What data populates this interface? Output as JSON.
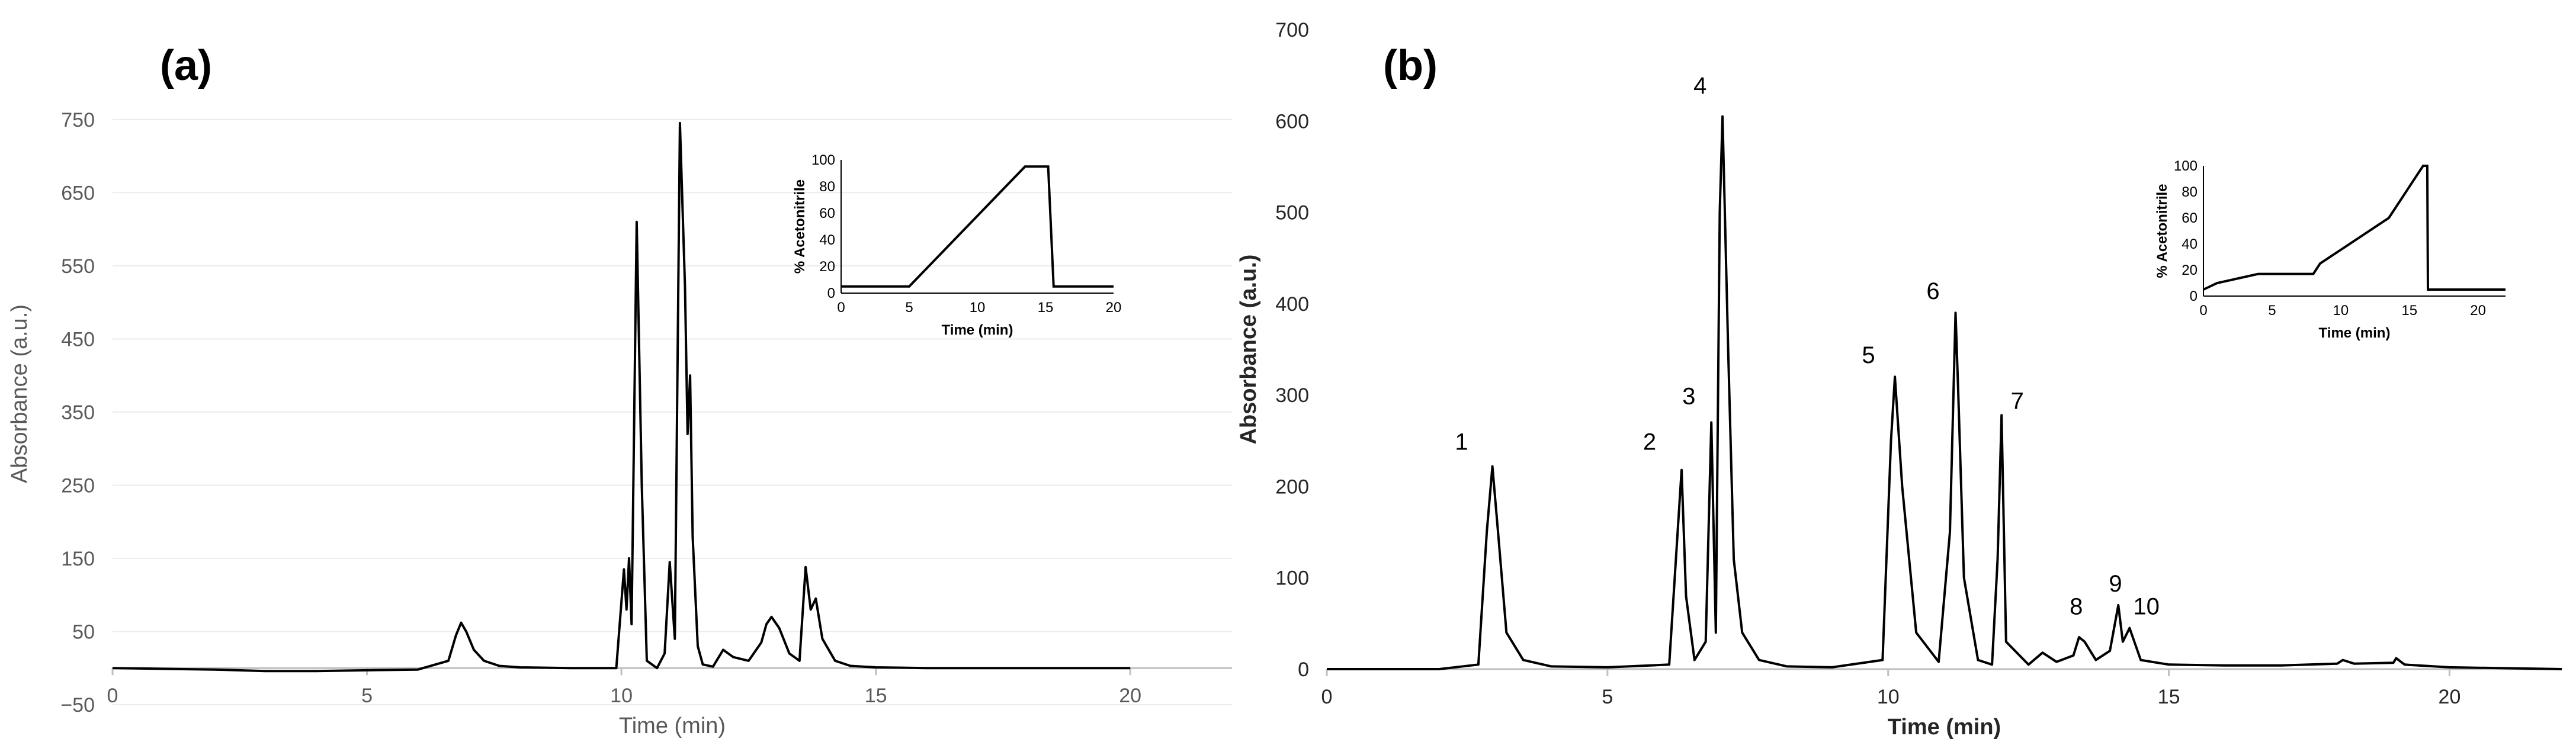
{
  "chart_data": [
    {
      "type": "line",
      "panel_label": "(a)",
      "xlabel": "Time (min)",
      "ylabel": "Absorbance (a.u.)",
      "xlim": [
        0,
        22
      ],
      "ylim": [
        -50,
        800
      ],
      "xticks": [
        0,
        5,
        10,
        15,
        20
      ],
      "yticks": [
        -50,
        50,
        150,
        250,
        350,
        450,
        550,
        650,
        750
      ],
      "series": [
        {
          "values_note": "",
          "x": [
            0,
            1,
            2,
            3,
            4,
            5,
            6,
            6.6,
            6.75,
            6.85,
            6.95,
            7.1,
            7.3,
            7.6,
            8,
            9,
            9.9,
            10.05,
            10.1,
            10.15,
            10.2,
            10.3,
            10.4,
            10.5,
            10.7,
            10.85,
            10.95,
            11.05,
            11.15,
            11.25,
            11.3,
            11.35,
            11.4,
            11.5,
            11.6,
            11.8,
            12.0,
            12.2,
            12.5,
            12.75,
            12.85,
            12.95,
            13.1,
            13.3,
            13.5,
            13.62,
            13.72,
            13.82,
            13.95,
            14.2,
            14.5,
            15,
            16,
            17,
            18,
            19,
            20
          ],
          "y": [
            0,
            -1,
            -2,
            -4,
            -4,
            -3,
            -2,
            10,
            45,
            62,
            50,
            25,
            10,
            3,
            1,
            0,
            0,
            135,
            80,
            150,
            60,
            610,
            250,
            10,
            0,
            20,
            145,
            40,
            745,
            520,
            320,
            400,
            180,
            30,
            5,
            2,
            25,
            15,
            10,
            35,
            60,
            70,
            55,
            20,
            10,
            138,
            80,
            95,
            40,
            10,
            3,
            1,
            0,
            0,
            0,
            0,
            0
          ]
        }
      ],
      "inset": {
        "xlabel": "Time (min)",
        "ylabel": "% Acetonitrile",
        "xlim": [
          0,
          20
        ],
        "ylim": [
          0,
          100
        ],
        "xticks": [
          0,
          5,
          10,
          15,
          20
        ],
        "yticks": [
          0,
          20,
          40,
          60,
          80,
          100
        ],
        "x": [
          0,
          5,
          13.5,
          15.2,
          15.6,
          20
        ],
        "y": [
          5,
          5,
          95,
          95,
          5,
          5
        ]
      }
    },
    {
      "type": "line",
      "panel_label": "(b)",
      "xlabel": "Time (min)",
      "ylabel": "Absorbance (a.u.)",
      "xlim": [
        0,
        22
      ],
      "ylim": [
        0,
        700
      ],
      "xticks": [
        0,
        5,
        10,
        15,
        20
      ],
      "yticks": [
        0,
        100,
        200,
        300,
        400,
        500,
        600,
        700
      ],
      "peak_labels": [
        {
          "text": "1",
          "x": 2.4,
          "y": 240
        },
        {
          "text": "2",
          "x": 5.75,
          "y": 240
        },
        {
          "text": "3",
          "x": 6.45,
          "y": 290
        },
        {
          "text": "4",
          "x": 6.65,
          "y": 630
        },
        {
          "text": "5",
          "x": 9.65,
          "y": 335
        },
        {
          "text": "6",
          "x": 10.8,
          "y": 405
        },
        {
          "text": "7",
          "x": 12.3,
          "y": 285
        },
        {
          "text": "8",
          "x": 13.35,
          "y": 60
        },
        {
          "text": "9",
          "x": 14.05,
          "y": 85
        },
        {
          "text": "10",
          "x": 14.6,
          "y": 60
        }
      ],
      "series": [
        {
          "x": [
            0,
            1,
            2,
            2.7,
            2.85,
            2.95,
            3.05,
            3.2,
            3.5,
            4,
            5,
            6.1,
            6.25,
            6.32,
            6.4,
            6.55,
            6.75,
            6.85,
            6.93,
            7.0,
            7.05,
            7.15,
            7.25,
            7.4,
            7.7,
            8.2,
            9,
            9.9,
            10.05,
            10.12,
            10.25,
            10.5,
            10.9,
            11.1,
            11.2,
            11.25,
            11.35,
            11.6,
            11.85,
            11.95,
            12.02,
            12.1,
            12.5,
            12.75,
            13.0,
            13.3,
            13.4,
            13.5,
            13.7,
            13.95,
            14.1,
            14.18,
            14.3,
            14.5,
            15,
            16,
            17,
            18,
            18.1,
            18.3,
            19,
            19.05,
            19.2,
            20,
            22
          ],
          "y": [
            0,
            0,
            0,
            5,
            150,
            222,
            150,
            40,
            10,
            3,
            2,
            5,
            150,
            218,
            80,
            10,
            30,
            270,
            40,
            500,
            605,
            350,
            120,
            40,
            10,
            3,
            2,
            10,
            250,
            320,
            200,
            40,
            8,
            150,
            390,
            300,
            100,
            10,
            5,
            120,
            278,
            30,
            5,
            18,
            8,
            15,
            35,
            30,
            10,
            20,
            70,
            30,
            45,
            10,
            5,
            4,
            4,
            6,
            10,
            6,
            7,
            12,
            5,
            2,
            0
          ]
        }
      ],
      "inset": {
        "xlabel": "Time (min)",
        "ylabel": "% Acetonitrile",
        "xlim": [
          0,
          22
        ],
        "ylim": [
          0,
          100
        ],
        "xticks": [
          0,
          5,
          10,
          15,
          20
        ],
        "yticks": [
          0,
          20,
          40,
          60,
          80,
          100
        ],
        "x": [
          0,
          1,
          4,
          8,
          8.5,
          13.5,
          16,
          16.3,
          16.35,
          22
        ],
        "y": [
          5,
          10,
          17,
          17,
          25,
          60,
          100,
          100,
          5,
          5
        ]
      }
    }
  ]
}
